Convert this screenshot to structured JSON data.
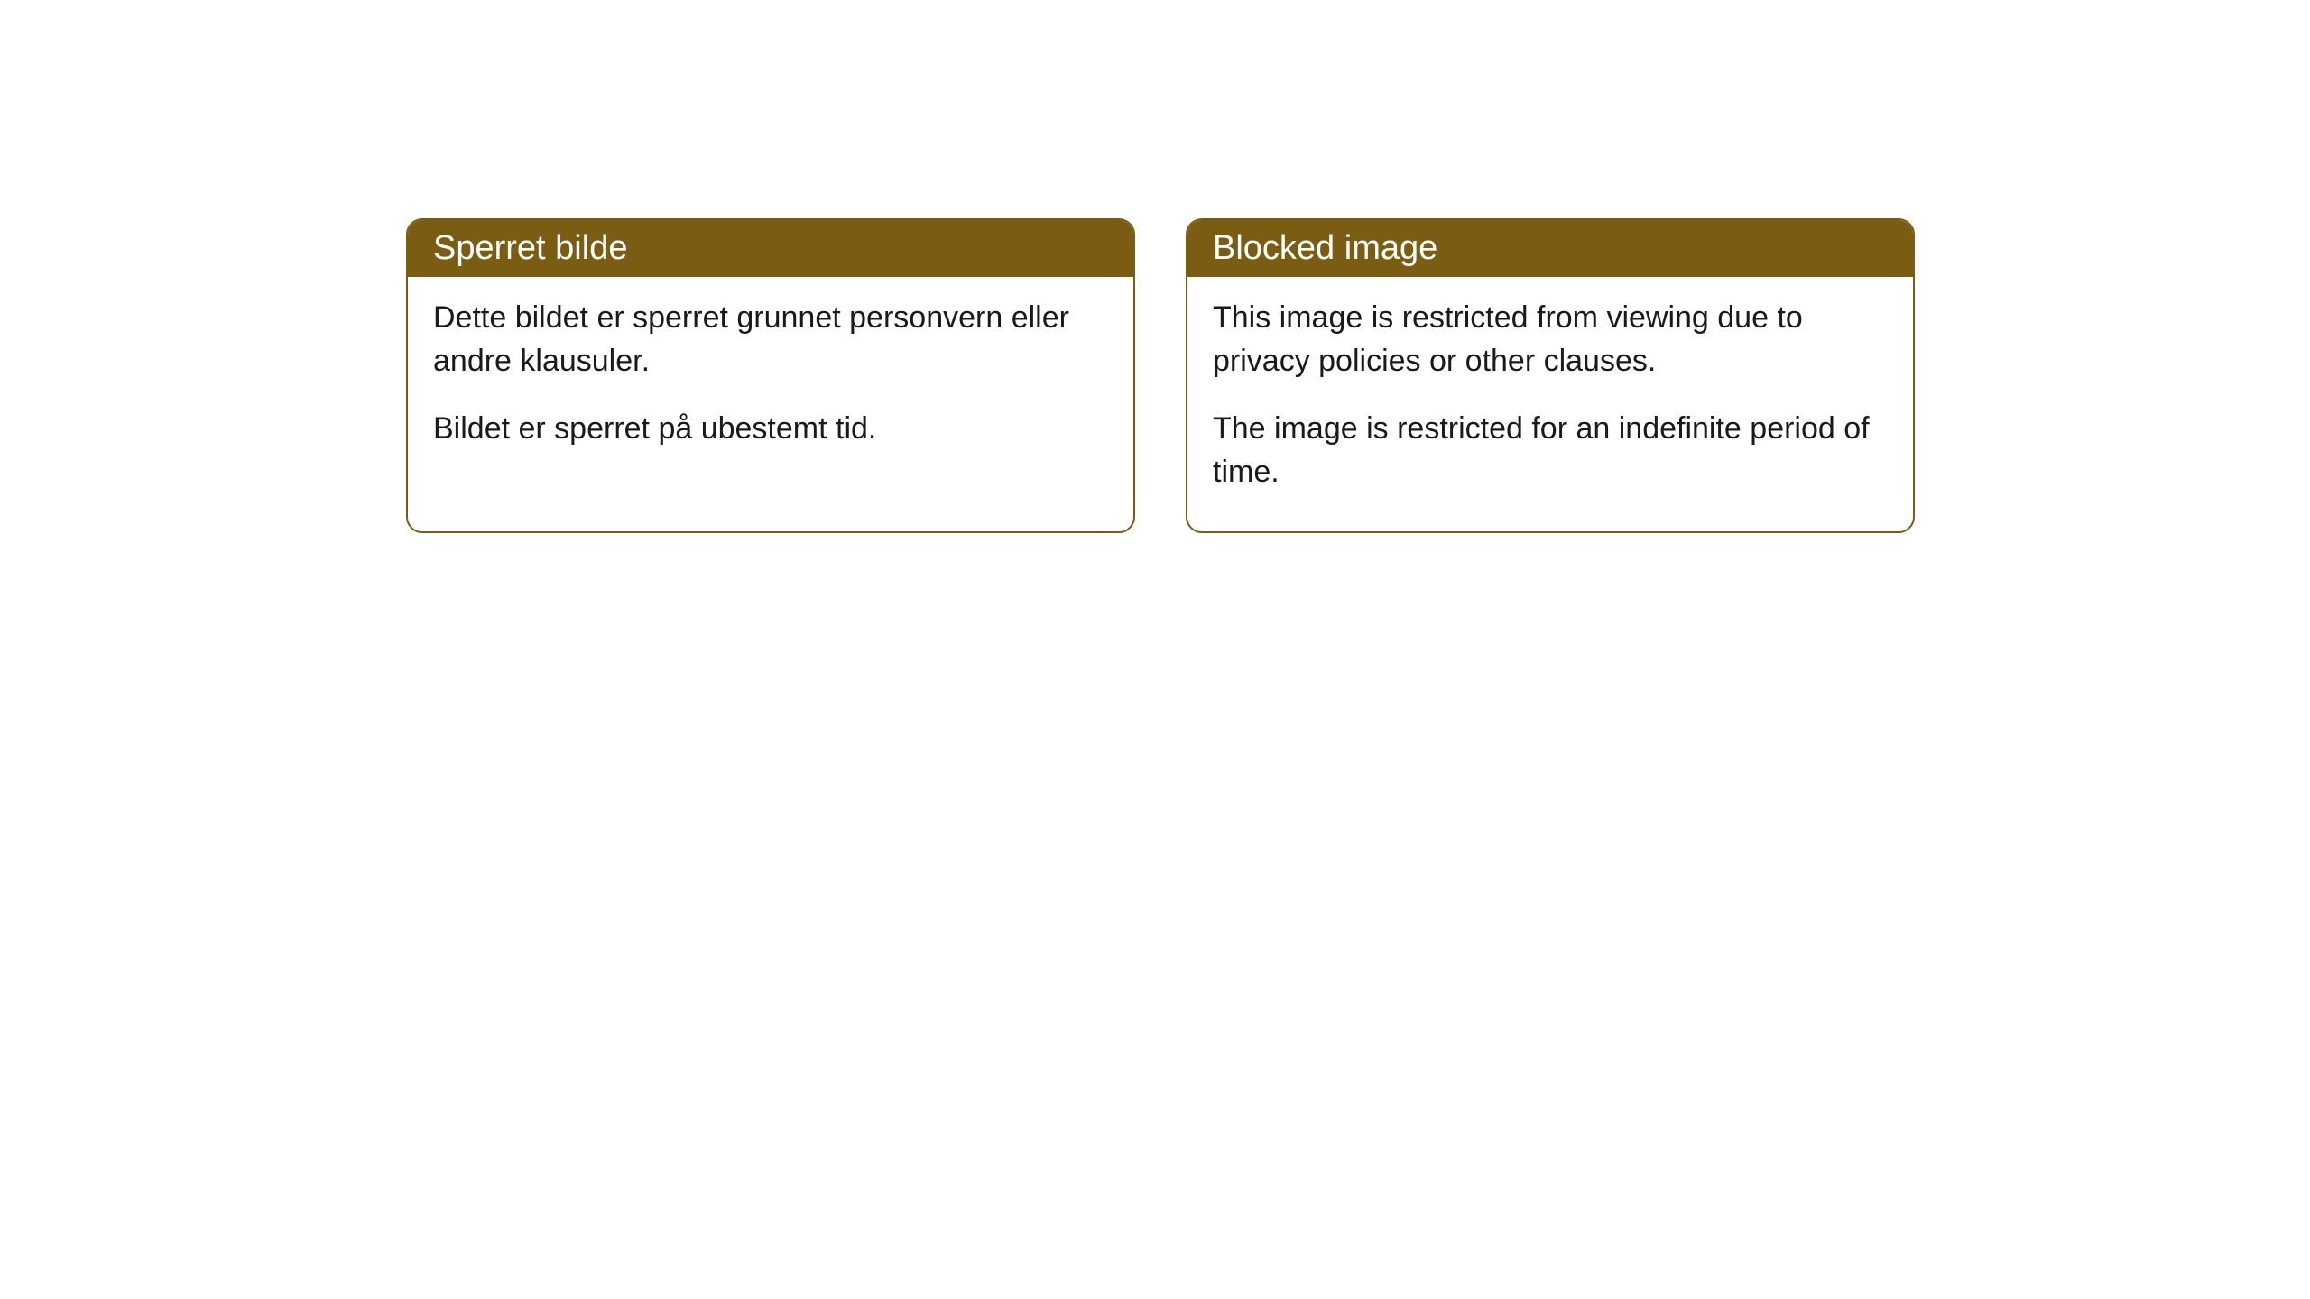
{
  "cards": [
    {
      "title": "Sperret bilde",
      "paragraph1": "Dette bildet er sperret grunnet personvern eller andre klausuler.",
      "paragraph2": "Bildet er sperret på ubestemt tid."
    },
    {
      "title": "Blocked image",
      "paragraph1": "This image is restricted from viewing due to privacy policies or other clauses.",
      "paragraph2": "The image is restricted for an indefinite period of time."
    }
  ],
  "styling": {
    "header_background_color": "#7a5c13",
    "header_text_color": "#ffffff",
    "border_color": "#7a5c13",
    "body_background_color": "#ffffff",
    "body_text_color": "#1a1a1a",
    "border_radius": 18,
    "header_fontsize": 38,
    "body_fontsize": 34
  }
}
